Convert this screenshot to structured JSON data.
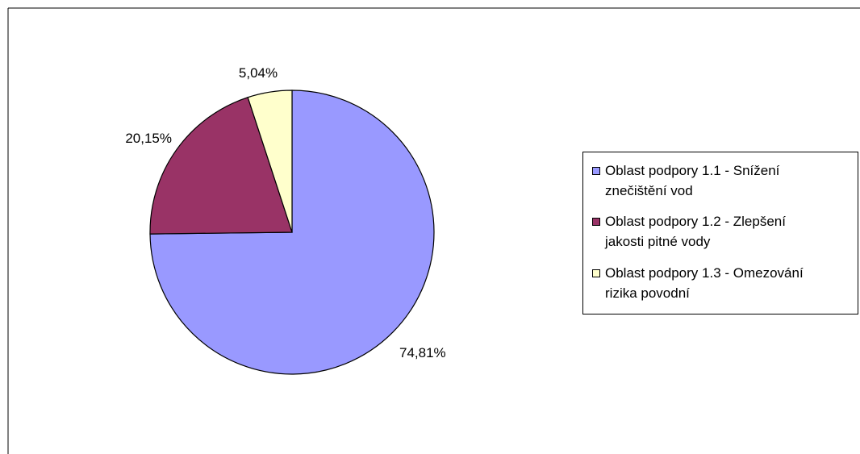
{
  "chart_data": {
    "type": "pie",
    "title": "",
    "start_angle_deg": 0,
    "direction": "clockwise",
    "legend_position": "right",
    "slices": [
      {
        "label": "Oblast podpory 1.1 - Snížení znečištění vod",
        "value": 74.81,
        "value_label": "74,81%",
        "color": "#9999FF"
      },
      {
        "label": "Oblast podpory 1.2 - Zlepšení jakosti pitné vody",
        "value": 20.15,
        "value_label": "20,15%",
        "color": "#993366"
      },
      {
        "label": "Oblast podpory 1.3 - Omezování rizika povodní",
        "value": 5.04,
        "value_label": "5,04%",
        "color": "#FFFFCC"
      }
    ]
  },
  "legend": {
    "items": [
      {
        "line1": "Oblast podpory 1.1 - Snížení",
        "line2": "znečištění vod",
        "color": "#9999FF"
      },
      {
        "line1": "Oblast podpory 1.2 - Zlepšení",
        "line2": "jakosti pitné vody",
        "color": "#993366"
      },
      {
        "line1": "Oblast podpory 1.3 - Omezování",
        "line2": "rizika povodní",
        "color": "#FFFFCC"
      }
    ]
  }
}
